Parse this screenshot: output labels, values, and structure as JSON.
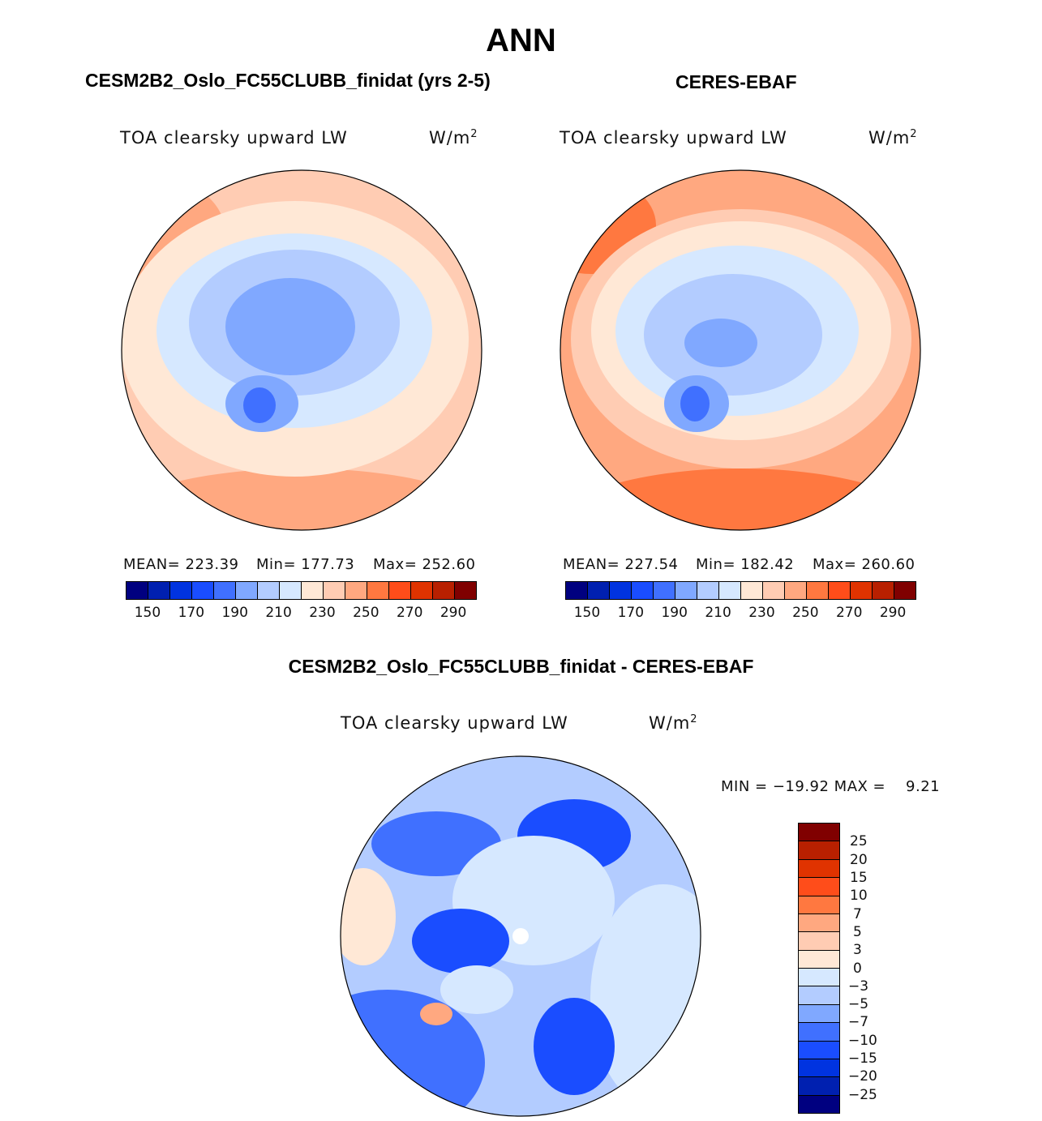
{
  "title": "ANN",
  "units_base": "W/m",
  "units_exp": "2",
  "panels": [
    {
      "title": "CESM2B2_Oslo_FC55CLUBB_finidat (yrs 2-5)",
      "variable": "TOA clearsky upward LW",
      "mean": "MEAN= 223.39",
      "min": "Min= 177.73",
      "max": "Max= 252.60"
    },
    {
      "title": "CERES-EBAF",
      "variable": "TOA clearsky upward LW",
      "mean": "MEAN= 227.54",
      "min": "Min= 182.42",
      "max": "Max= 260.60"
    },
    {
      "title": "CESM2B2_Oslo_FC55CLUBB_finidat - CERES-EBAF",
      "variable": "TOA clearsky upward LW",
      "minmax": "MIN = −19.92 MAX =    9.21"
    }
  ],
  "colors": [
    "#000080",
    "#0020b0",
    "#0033e0",
    "#1a4dff",
    "#4070ff",
    "#80a8ff",
    "#b3ccff",
    "#d6e8ff",
    "#ffe8d6",
    "#ffccb3",
    "#ffa880",
    "#ff7840",
    "#ff4d1a",
    "#e03300",
    "#b82000",
    "#800000"
  ],
  "field_ticks": [
    "150",
    "170",
    "190",
    "210",
    "230",
    "250",
    "270",
    "290"
  ],
  "diff_ticks": [
    "25",
    "20",
    "15",
    "10",
    "7",
    "5",
    "3",
    "0",
    "−3",
    "−5",
    "−7",
    "−10",
    "−15",
    "−20",
    "−25"
  ]
}
